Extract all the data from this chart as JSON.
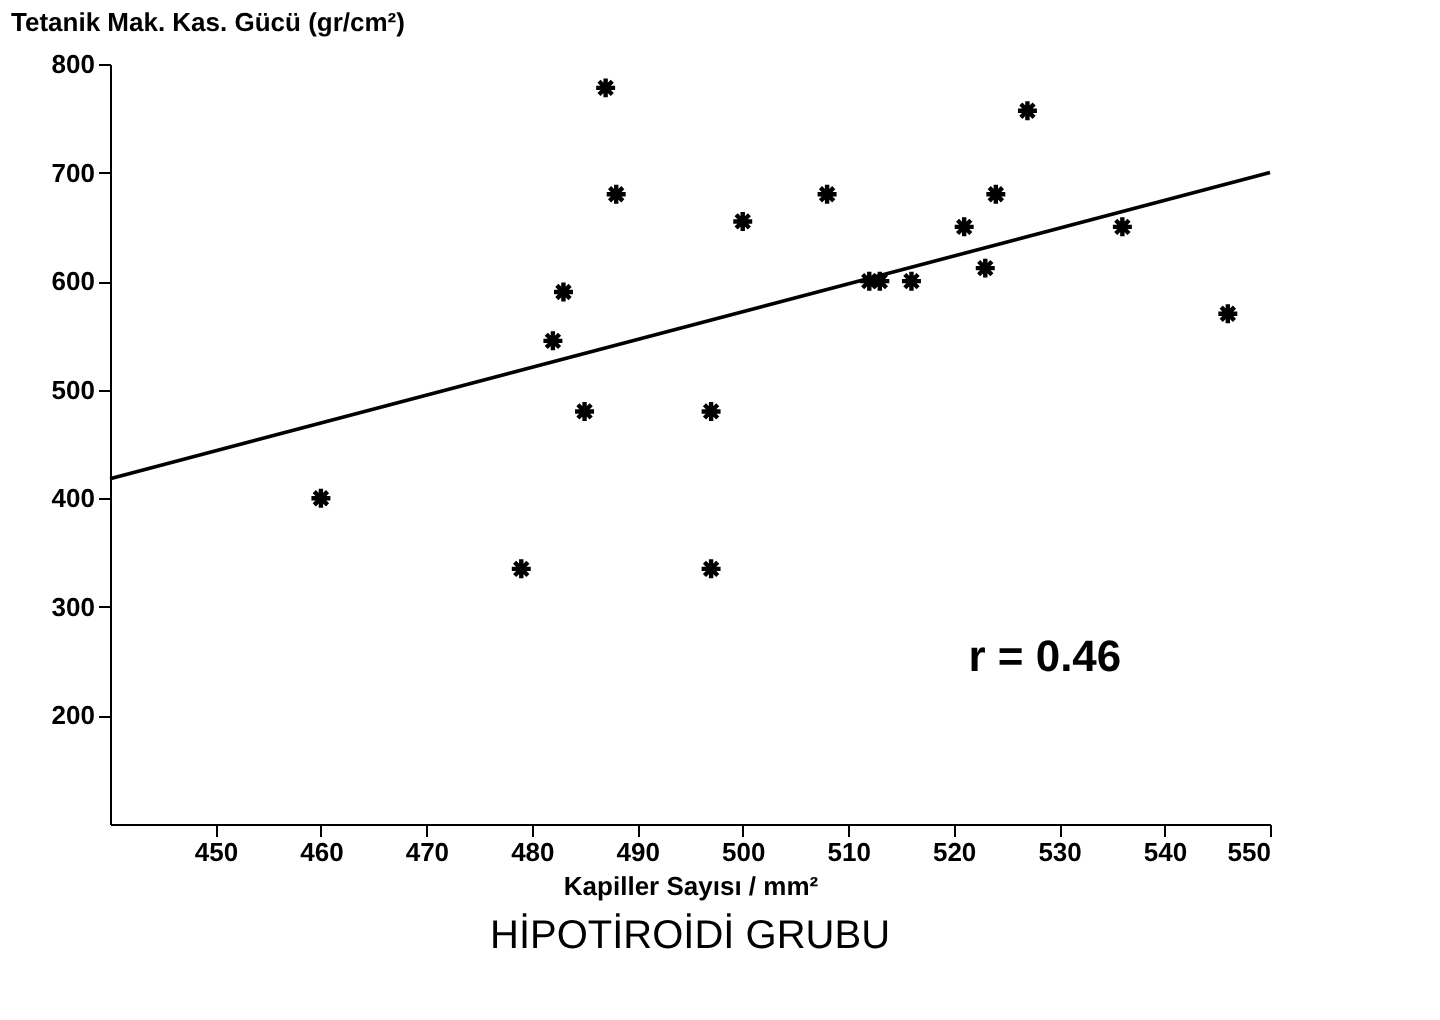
{
  "chart_data": {
    "type": "scatter",
    "title": "HİPOTİROİDİ GRUBU",
    "xlabel": "Kapiller Sayısı / mm²",
    "ylabel": "Tetanik Mak. Kas. Gücü (gr/cm²)",
    "annotations": [
      "r = 0.46"
    ],
    "marker": "cross",
    "grid": false,
    "legend": false,
    "xlim": [
      440,
      550
    ],
    "ylim": [
      100,
      800
    ],
    "xticks": [
      450,
      460,
      470,
      480,
      490,
      500,
      510,
      520,
      530,
      540,
      550
    ],
    "yticks": [
      200,
      300,
      400,
      500,
      600,
      700,
      800
    ],
    "series": [
      {
        "color": "#000000",
        "x": [
          460,
          479,
          482,
          483,
          485,
          487,
          488,
          497,
          497,
          500,
          508,
          512,
          513,
          516,
          521,
          523,
          524,
          527,
          536,
          546
        ],
        "values": [
          400,
          335,
          545,
          590,
          480,
          778,
          680,
          480,
          335,
          655,
          680,
          600,
          600,
          600,
          650,
          612,
          680,
          757,
          650,
          570
        ]
      },
      {
        "type": "line",
        "marker": "none",
        "color": "#000000",
        "x": [
          440,
          550
        ],
        "values": [
          418,
          700
        ]
      }
    ]
  }
}
